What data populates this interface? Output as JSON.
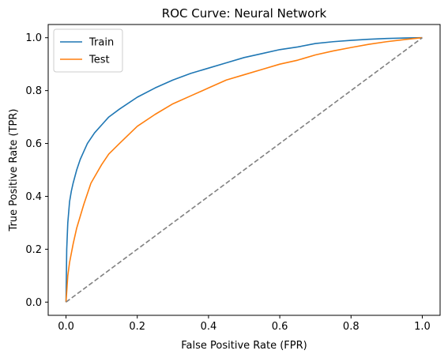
{
  "chart_data": {
    "type": "line",
    "title": "ROC Curve: Neural Network",
    "xlabel": "False Positive Rate (FPR)",
    "ylabel": "True Positive Rate (TPR)",
    "xlim": [
      -0.05,
      1.05
    ],
    "ylim": [
      -0.05,
      1.05
    ],
    "xticks": [
      0.0,
      0.2,
      0.4,
      0.6,
      0.8,
      1.0
    ],
    "yticks": [
      0.0,
      0.2,
      0.4,
      0.6,
      0.8,
      1.0
    ],
    "xtick_labels": [
      "0.0",
      "0.2",
      "0.4",
      "0.6",
      "0.8",
      "1.0"
    ],
    "ytick_labels": [
      "0.0",
      "0.2",
      "0.4",
      "0.6",
      "0.8",
      "1.0"
    ],
    "grid": false,
    "legend_position": "top-left",
    "series": [
      {
        "name": "Train",
        "color": "#1f77b4",
        "x": [
          0.0,
          0.002,
          0.005,
          0.01,
          0.015,
          0.02,
          0.03,
          0.04,
          0.05,
          0.06,
          0.08,
          0.1,
          0.12,
          0.15,
          0.2,
          0.25,
          0.3,
          0.35,
          0.4,
          0.45,
          0.5,
          0.55,
          0.6,
          0.65,
          0.7,
          0.75,
          0.8,
          0.85,
          0.9,
          0.95,
          1.0
        ],
        "y": [
          0.0,
          0.2,
          0.3,
          0.38,
          0.42,
          0.45,
          0.5,
          0.54,
          0.57,
          0.6,
          0.64,
          0.67,
          0.7,
          0.73,
          0.775,
          0.81,
          0.84,
          0.865,
          0.885,
          0.905,
          0.925,
          0.94,
          0.955,
          0.965,
          0.978,
          0.985,
          0.99,
          0.994,
          0.997,
          0.999,
          1.0
        ]
      },
      {
        "name": "Test",
        "color": "#ff7f0e",
        "x": [
          0.0,
          0.005,
          0.01,
          0.02,
          0.03,
          0.05,
          0.07,
          0.1,
          0.12,
          0.15,
          0.2,
          0.25,
          0.3,
          0.35,
          0.4,
          0.45,
          0.5,
          0.55,
          0.6,
          0.65,
          0.7,
          0.75,
          0.8,
          0.85,
          0.9,
          0.95,
          1.0
        ],
        "y": [
          0.0,
          0.1,
          0.15,
          0.22,
          0.28,
          0.37,
          0.45,
          0.52,
          0.56,
          0.6,
          0.665,
          0.71,
          0.75,
          0.78,
          0.81,
          0.84,
          0.86,
          0.88,
          0.9,
          0.915,
          0.935,
          0.95,
          0.963,
          0.975,
          0.985,
          0.993,
          1.0
        ]
      },
      {
        "name": "",
        "color": "#808080",
        "dashed": true,
        "x": [
          0.0,
          1.0
        ],
        "y": [
          0.0,
          1.0
        ]
      }
    ]
  }
}
